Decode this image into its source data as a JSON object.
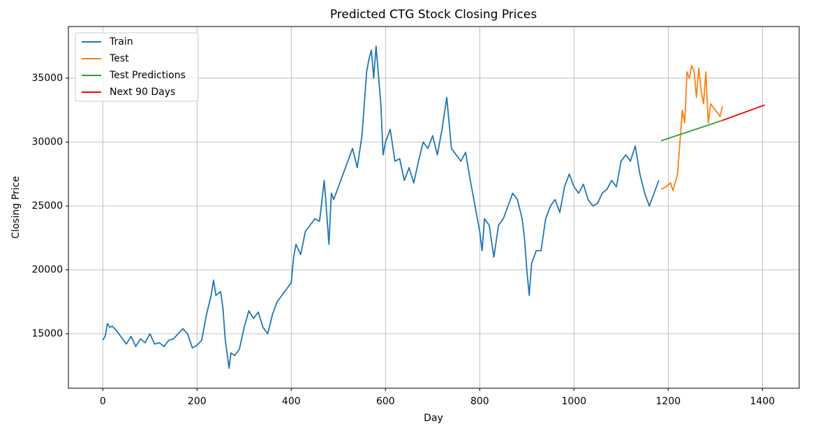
{
  "chart_data": {
    "type": "line",
    "title": "Predicted CTG Stock Closing Prices",
    "x_label": "Day",
    "y_label": "Closing Price",
    "xlim": [
      -73,
      1478
    ],
    "ylim": [
      10740,
      39040
    ],
    "xticks": [
      0,
      200,
      400,
      600,
      800,
      1000,
      1200,
      1400
    ],
    "yticks": [
      15000,
      20000,
      25000,
      30000,
      35000
    ],
    "grid": true,
    "legend": "upper left",
    "series": [
      {
        "name": "Train",
        "color": "#1f77b4",
        "x": [
          0,
          5,
          10,
          15,
          20,
          30,
          40,
          50,
          60,
          70,
          80,
          90,
          100,
          110,
          120,
          130,
          140,
          150,
          160,
          170,
          180,
          190,
          200,
          210,
          220,
          230,
          235,
          240,
          250,
          255,
          260,
          268,
          272,
          280,
          290,
          300,
          310,
          320,
          330,
          340,
          350,
          360,
          370,
          380,
          390,
          400,
          405,
          410,
          420,
          430,
          440,
          450,
          460,
          470,
          480,
          485,
          490,
          500,
          510,
          520,
          530,
          540,
          550,
          560,
          565,
          570,
          575,
          580,
          590,
          595,
          600,
          610,
          620,
          630,
          640,
          650,
          660,
          670,
          680,
          690,
          700,
          710,
          720,
          730,
          740,
          750,
          760,
          770,
          780,
          790,
          800,
          805,
          810,
          820,
          830,
          840,
          850,
          860,
          870,
          880,
          890,
          895,
          900,
          905,
          910,
          920,
          930,
          940,
          950,
          960,
          970,
          980,
          990,
          1000,
          1010,
          1020,
          1030,
          1040,
          1050,
          1060,
          1070,
          1080,
          1090,
          1100,
          1110,
          1120,
          1130,
          1140,
          1150,
          1160,
          1170,
          1180
        ],
        "values": [
          14500,
          14800,
          15800,
          15500,
          15600,
          15200,
          14700,
          14200,
          14800,
          14000,
          14600,
          14300,
          15000,
          14200,
          14300,
          14000,
          14500,
          14600,
          15000,
          15400,
          15000,
          13900,
          14100,
          14500,
          16500,
          18000,
          19200,
          18000,
          18300,
          17000,
          14500,
          12300,
          13500,
          13300,
          13800,
          15500,
          16800,
          16200,
          16700,
          15500,
          15000,
          16500,
          17500,
          18000,
          18500,
          19000,
          21000,
          22000,
          21200,
          23000,
          23500,
          24000,
          23800,
          27000,
          22000,
          26000,
          25500,
          26500,
          27500,
          28500,
          29500,
          28000,
          30500,
          35500,
          36500,
          37200,
          35000,
          37500,
          33000,
          29000,
          30000,
          31000,
          28500,
          28700,
          27000,
          28000,
          26800,
          28500,
          30000,
          29500,
          30500,
          29000,
          31000,
          33500,
          29500,
          29000,
          28500,
          29200,
          27000,
          25000,
          23000,
          21500,
          24000,
          23500,
          21000,
          23500,
          24000,
          25000,
          26000,
          25500,
          24000,
          22500,
          20000,
          18000,
          20500,
          21500,
          21500,
          24000,
          25000,
          25500,
          24500,
          26500,
          27500,
          26500,
          26000,
          26700,
          25500,
          25000,
          25200,
          26000,
          26300,
          27000,
          26500,
          28500,
          29000,
          28500,
          29700,
          27500,
          26000,
          25000,
          26000,
          27000
        ]
      },
      {
        "name": "Test",
        "color": "#ff7f0e",
        "x": [
          1185,
          1195,
          1205,
          1210,
          1220,
          1225,
          1230,
          1235,
          1240,
          1245,
          1250,
          1255,
          1260,
          1265,
          1270,
          1275,
          1280,
          1285,
          1290,
          1300,
          1310,
          1315
        ],
        "values": [
          26300,
          26500,
          26800,
          26200,
          27500,
          30000,
          32500,
          31500,
          35500,
          35000,
          36000,
          35500,
          33500,
          35800,
          34000,
          33000,
          35500,
          31500,
          33000,
          32500,
          32000,
          32800
        ]
      },
      {
        "name": "Test Predictions",
        "color": "#2ca02c",
        "x": [
          1185,
          1315
        ],
        "values": [
          30100,
          31700
        ]
      },
      {
        "name": "Next 90 Days",
        "color": "#ff0000",
        "x": [
          1315,
          1405
        ],
        "values": [
          31700,
          32900
        ]
      }
    ]
  }
}
